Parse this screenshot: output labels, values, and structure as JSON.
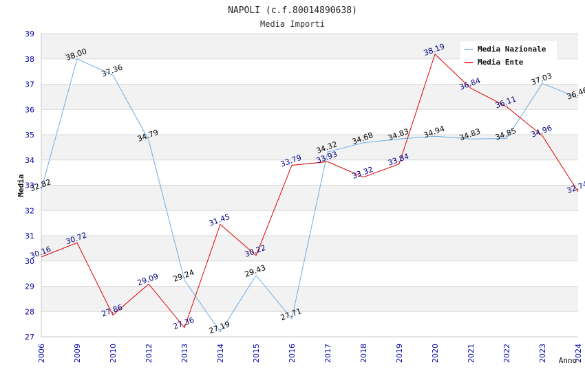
{
  "chart_data": {
    "type": "line",
    "title": "NAPOLI (c.f.80014890638)",
    "subtitle": "Media Importi",
    "xlabel": "Anno",
    "ylabel": "Media",
    "ylim": [
      27,
      39
    ],
    "y_ticks": [
      "27",
      "28",
      "29",
      "30",
      "31",
      "32",
      "33",
      "34",
      "35",
      "36",
      "37",
      "38",
      "39"
    ],
    "categories": [
      "2006",
      "2009",
      "2010",
      "2012",
      "2013",
      "2014",
      "2015",
      "2016",
      "2017",
      "2018",
      "2019",
      "2020",
      "2021",
      "2022",
      "2023",
      "2024"
    ],
    "series": [
      {
        "name": "Media Nazionale",
        "color": "#6aaee8",
        "label_color": "#000000",
        "values": [
          32.82,
          38.0,
          37.36,
          34.79,
          29.24,
          27.19,
          29.43,
          27.71,
          34.32,
          34.68,
          34.83,
          34.94,
          34.83,
          34.85,
          37.03,
          36.46
        ],
        "labels": [
          "32.82",
          "38.00",
          "37.36",
          "34.79",
          "29.24",
          "27.19",
          "29.43",
          "27.71",
          "34.32",
          "34.68",
          "34.83",
          "34.94",
          "34.83",
          "34.85",
          "37.03",
          "36.46"
        ]
      },
      {
        "name": "Media Ente",
        "color": "#e00000",
        "label_color": "#000080",
        "values": [
          30.16,
          30.72,
          27.86,
          29.09,
          27.36,
          31.45,
          30.22,
          33.79,
          33.93,
          33.32,
          33.84,
          38.19,
          36.84,
          36.11,
          34.96,
          32.74
        ],
        "labels": [
          "30.16",
          "30.72",
          "27.86",
          "29.09",
          "27.36",
          "31.45",
          "30.22",
          "33.79",
          "33.93",
          "33.32",
          "33.84",
          "38.19",
          "36.84",
          "36.11",
          "34.96",
          "32.74"
        ]
      }
    ],
    "legend": [
      "Media Nazionale",
      "Media Ente"
    ],
    "legend_position": "top-right",
    "grid": true,
    "band_color": "#f2f2f2",
    "tick_color": "#0000aa"
  }
}
